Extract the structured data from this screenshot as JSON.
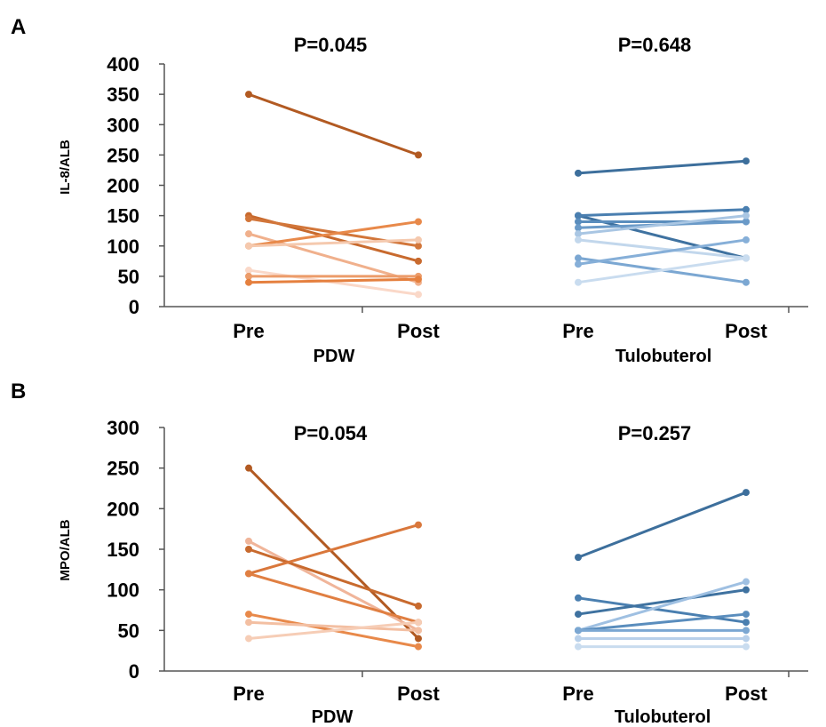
{
  "chart_data": [
    {
      "panel": "A",
      "type": "line",
      "ylabel": "IL-8/ALB",
      "ylim": [
        0,
        400
      ],
      "yticks": [
        "0",
        "50",
        "100",
        "150",
        "200",
        "250",
        "300",
        "350",
        "400"
      ],
      "groups": [
        {
          "name": "PDW",
          "pvalue": "P=0.045",
          "x": [
            "Pre",
            "Post"
          ],
          "series": [
            {
              "values": [
                350,
                250
              ],
              "color": "#b25a22"
            },
            {
              "values": [
                150,
                75
              ],
              "color": "#c86a2e"
            },
            {
              "values": [
                145,
                100
              ],
              "color": "#d2763a"
            },
            {
              "values": [
                120,
                40
              ],
              "color": "#f0b08c"
            },
            {
              "values": [
                100,
                140
              ],
              "color": "#e8894a"
            },
            {
              "values": [
                100,
                110
              ],
              "color": "#f5c9ae"
            },
            {
              "values": [
                60,
                20
              ],
              "color": "#fad8c8"
            },
            {
              "values": [
                50,
                50
              ],
              "color": "#ec9c6a"
            },
            {
              "values": [
                40,
                45
              ],
              "color": "#e5803f"
            }
          ]
        },
        {
          "name": "Tulobuterol",
          "pvalue": "P=0.648",
          "x": [
            "Pre",
            "Post"
          ],
          "series": [
            {
              "values": [
                220,
                240
              ],
              "color": "#3d6f9c"
            },
            {
              "values": [
                150,
                80
              ],
              "color": "#3f72a0"
            },
            {
              "values": [
                150,
                160
              ],
              "color": "#4a7fb0"
            },
            {
              "values": [
                140,
                140
              ],
              "color": "#5a8dbd"
            },
            {
              "values": [
                130,
                140
              ],
              "color": "#6a9ac8"
            },
            {
              "values": [
                120,
                150
              ],
              "color": "#a9c6e3"
            },
            {
              "values": [
                110,
                80
              ],
              "color": "#c2d7ec"
            },
            {
              "values": [
                80,
                40
              ],
              "color": "#7ba7d2"
            },
            {
              "values": [
                70,
                110
              ],
              "color": "#86afd8"
            },
            {
              "values": [
                40,
                80
              ],
              "color": "#c9dcef"
            }
          ]
        }
      ]
    },
    {
      "panel": "B",
      "type": "line",
      "ylabel": "MPO/ALB",
      "ylim": [
        0,
        300
      ],
      "yticks": [
        "0",
        "50",
        "100",
        "150",
        "200",
        "250",
        "300"
      ],
      "groups": [
        {
          "name": "PDW",
          "pvalue": "P=0.054",
          "x": [
            "Pre",
            "Post"
          ],
          "series": [
            {
              "values": [
                250,
                40
              ],
              "color": "#b25a22"
            },
            {
              "values": [
                160,
                50
              ],
              "color": "#f0b59a"
            },
            {
              "values": [
                150,
                80
              ],
              "color": "#c86a2e"
            },
            {
              "values": [
                120,
                180
              ],
              "color": "#d9773b"
            },
            {
              "values": [
                120,
                60
              ],
              "color": "#e07f42"
            },
            {
              "values": [
                70,
                30
              ],
              "color": "#e8894a"
            },
            {
              "values": [
                60,
                50
              ],
              "color": "#f3bfa2"
            },
            {
              "values": [
                40,
                60
              ],
              "color": "#f6cdb6"
            }
          ]
        },
        {
          "name": "Tulobuterol",
          "pvalue": "P=0.257",
          "x": [
            "Pre",
            "Post"
          ],
          "series": [
            {
              "values": [
                140,
                220
              ],
              "color": "#3d6f9c"
            },
            {
              "values": [
                90,
                60
              ],
              "color": "#4a7fb0"
            },
            {
              "values": [
                70,
                100
              ],
              "color": "#3f72a0"
            },
            {
              "values": [
                50,
                110
              ],
              "color": "#9fc0e2"
            },
            {
              "values": [
                50,
                70
              ],
              "color": "#5a8dbd"
            },
            {
              "values": [
                50,
                50
              ],
              "color": "#7ba7d2"
            },
            {
              "values": [
                40,
                40
              ],
              "color": "#b8d0ea"
            },
            {
              "values": [
                30,
                30
              ],
              "color": "#c9dcef"
            }
          ]
        }
      ]
    }
  ]
}
